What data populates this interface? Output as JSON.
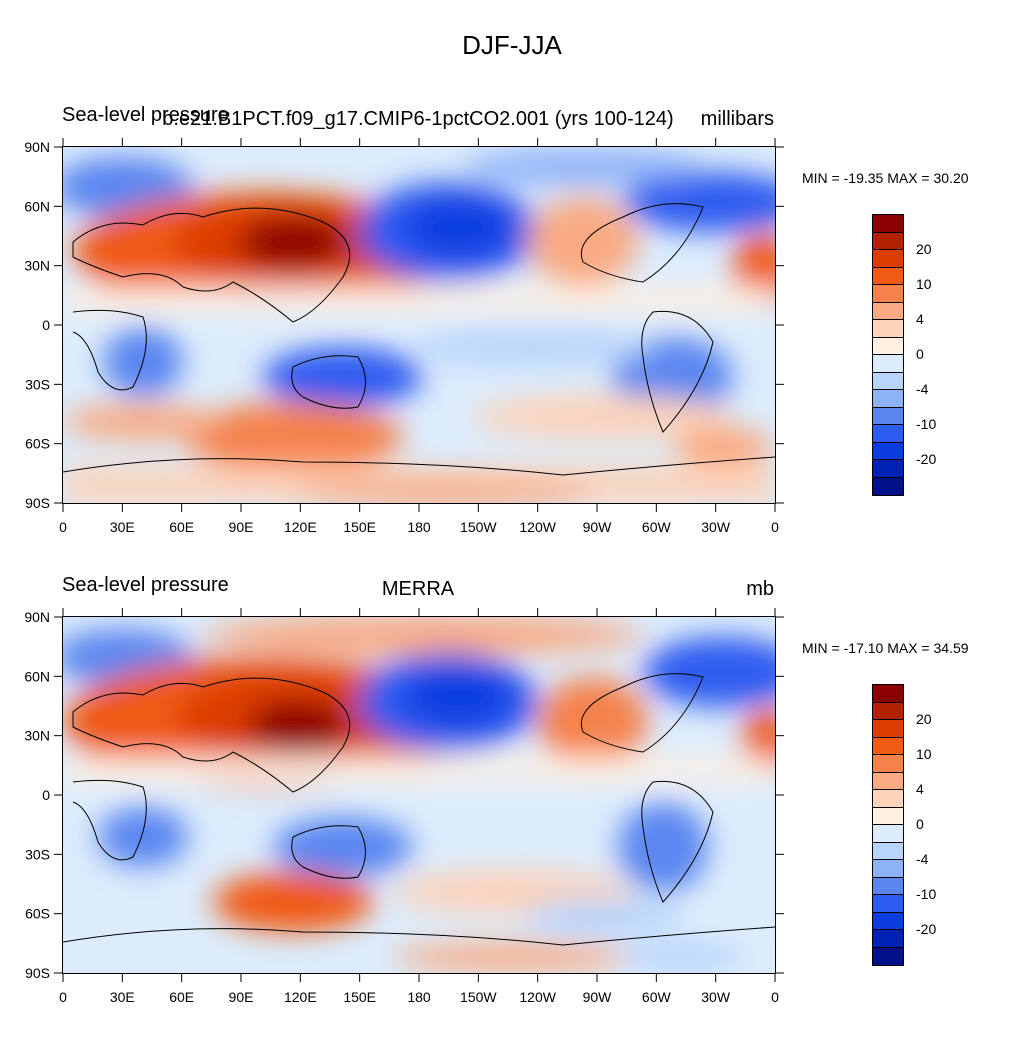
{
  "title": "DJF-JJA",
  "lat_ticks": [
    "90N",
    "60N",
    "30N",
    "0",
    "30S",
    "60S",
    "90S"
  ],
  "lon_ticks": [
    "0",
    "30E",
    "60E",
    "90E",
    "120E",
    "150E",
    "180",
    "150W",
    "120W",
    "90W",
    "60W",
    "30W",
    "0"
  ],
  "colorbar_colors": [
    "#8b0000",
    "#b22200",
    "#dc3c00",
    "#f05a14",
    "#f5824b",
    "#f9aa82",
    "#fdd3b9",
    "#fff0e1",
    "#dcecfc",
    "#b8d4fb",
    "#8eb2f8",
    "#5a86f0",
    "#2e5cf0",
    "#0a3ce0",
    "#0022b4",
    "#001088"
  ],
  "panels": [
    {
      "left_label": "Sea-level pressure",
      "center_label": "b.e21.B1PCT.f09_g17.CMIP6-1pctCO2.001 (yrs 100-124)",
      "right_label": "millibars",
      "minmax": "MIN = -19.35 MAX =  30.20",
      "colorbar_labels": [
        "20",
        "10",
        "4",
        "0",
        "-4",
        "-10",
        "-20"
      ]
    },
    {
      "left_label": "Sea-level pressure",
      "center_label": "MERRA",
      "right_label": "mb",
      "minmax": "MIN = -17.10 MAX =  34.59",
      "colorbar_labels": [
        "20",
        "10",
        "4",
        "0",
        "-4",
        "-10",
        "-20"
      ]
    }
  ]
}
